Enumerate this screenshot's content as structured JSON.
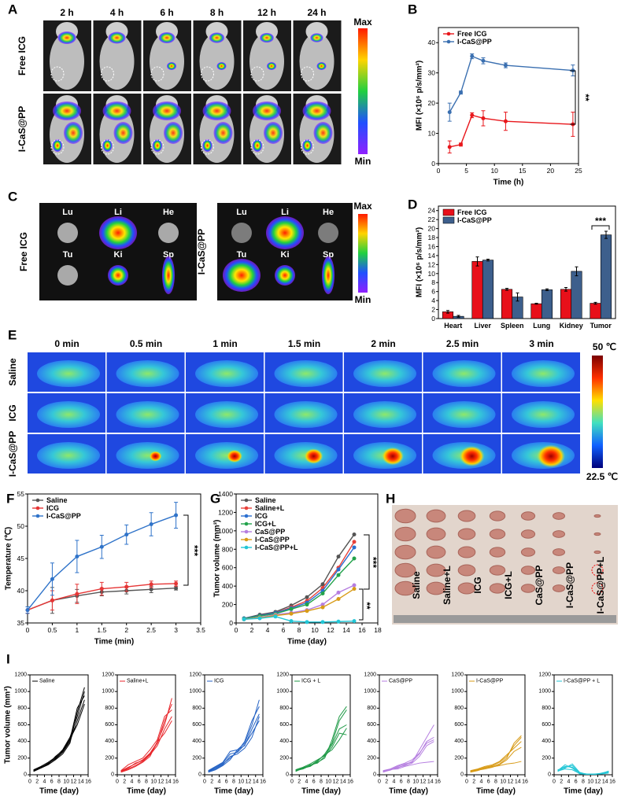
{
  "panel_A": {
    "label": "A",
    "columns": [
      "2 h",
      "4 h",
      "6 h",
      "8 h",
      "12 h",
      "24 h"
    ],
    "rows": [
      "Free ICG",
      "I-CaS@PP"
    ],
    "scale": [
      "Max",
      "Min"
    ]
  },
  "panel_C": {
    "label": "C",
    "groups": [
      {
        "name": "Free ICG",
        "organs": [
          "Lu",
          "Li",
          "He",
          "Tu",
          "Ki",
          "Sp"
        ]
      },
      {
        "name": "I-CaS@PP",
        "organs": [
          "Lu",
          "Li",
          "He",
          "Tu",
          "Ki",
          "Sp"
        ]
      }
    ],
    "scale": [
      "Max",
      "Min"
    ]
  },
  "panel_E": {
    "label": "E",
    "columns": [
      "0 min",
      "0.5 min",
      "1 min",
      "1.5 min",
      "2 min",
      "2.5 min",
      "3 min"
    ],
    "rows": [
      "Saline",
      "ICG",
      "I-CaS@PP"
    ],
    "scale": [
      "50 ℃",
      "22.5 ℃"
    ]
  },
  "panel_H": {
    "label": "H",
    "groups": [
      "Saline",
      "Saline+L",
      "ICG",
      "ICG+L",
      "CaS@PP",
      "I-CaS@PP",
      "I-CaS@PP+L"
    ]
  },
  "chart_data": [
    {
      "type": "line",
      "label": "B",
      "x_label": "Time (h)",
      "y_label": "MFI (×10⁶ p/s/mm²)",
      "x": [
        2,
        4,
        6,
        8,
        12,
        24
      ],
      "xlim": [
        0,
        25
      ],
      "xticks": [
        0,
        5,
        10,
        15,
        20,
        25
      ],
      "ylim": [
        0,
        45
      ],
      "yticks": [
        0,
        10,
        20,
        30,
        40
      ],
      "series": [
        {
          "name": "Free ICG",
          "color": "#e8161b",
          "values": [
            5.5,
            6.3,
            16,
            15,
            14,
            13
          ],
          "errors": [
            2,
            0.5,
            0.8,
            2.5,
            3,
            4
          ]
        },
        {
          "name": "I-CaS@PP",
          "color": "#3a6fb0",
          "values": [
            17,
            23.5,
            35.5,
            34,
            32.5,
            30.8
          ],
          "errors": [
            3,
            0.5,
            0.8,
            1,
            0.8,
            1.8
          ]
        }
      ],
      "annotations": [
        "**"
      ]
    },
    {
      "type": "bar",
      "label": "D",
      "y_label": "MFI (×10⁶ p/s/mm²)",
      "categories": [
        "Heart",
        "Liver",
        "Spleen",
        "Lung",
        "Kidney",
        "Tumor"
      ],
      "ylim": [
        0,
        25
      ],
      "yticks": [
        0,
        2,
        4,
        6,
        8,
        10,
        12,
        14,
        16,
        18,
        20,
        22,
        24
      ],
      "series": [
        {
          "name": "Free ICG",
          "color": "#e8101a",
          "values": [
            1.5,
            12.7,
            6.5,
            3.3,
            6.5,
            3.4
          ],
          "errors": [
            0.3,
            1,
            0.2,
            0.1,
            0.4,
            0.2
          ]
        },
        {
          "name": "I-CaS@PP",
          "color": "#3d5f8c",
          "values": [
            0.5,
            13,
            4.8,
            6.4,
            10.5,
            18.6
          ],
          "errors": [
            0.2,
            0.2,
            0.9,
            0.2,
            1,
            0.8
          ]
        }
      ],
      "annotations": [
        "***"
      ]
    },
    {
      "type": "line",
      "label": "F",
      "x_label": "Time (min)",
      "y_label": "Temperature (℃)",
      "x": [
        0,
        0.5,
        1,
        1.5,
        2,
        2.5,
        3
      ],
      "xlim": [
        0,
        3.5
      ],
      "xticks": [
        0,
        0.5,
        1,
        1.5,
        2,
        2.5,
        3,
        3.5
      ],
      "ylim": [
        35,
        55
      ],
      "yticks": [
        35,
        40,
        45,
        50,
        55
      ],
      "series": [
        {
          "name": "Saline",
          "color": "#555555",
          "values": [
            37,
            38.5,
            39.2,
            39.8,
            40,
            40.2,
            40.4
          ],
          "errors": [
            0.5,
            2,
            1,
            0.6,
            0.5,
            0.5,
            0.3
          ]
        },
        {
          "name": "ICG",
          "color": "#e63535",
          "values": [
            37,
            38.5,
            39.5,
            40.3,
            40.6,
            41,
            41.1
          ],
          "errors": [
            0.5,
            1.5,
            1.5,
            1,
            0.7,
            0.5,
            0.4
          ]
        },
        {
          "name": "I-CaS@PP",
          "color": "#2f73c9",
          "values": [
            37,
            41.8,
            45.3,
            46.8,
            48.7,
            50.3,
            51.7
          ],
          "errors": [
            0.5,
            2.5,
            2.5,
            1.8,
            1.5,
            1.8,
            2
          ]
        }
      ],
      "annotations": [
        "***"
      ]
    },
    {
      "type": "line",
      "label": "G",
      "x_label": "Time (day)",
      "y_label": "Tumor volume (mm³)",
      "x": [
        1,
        3,
        5,
        7,
        9,
        11,
        13,
        15
      ],
      "xlim": [
        0,
        18
      ],
      "xticks": [
        0,
        2,
        4,
        6,
        8,
        10,
        12,
        14,
        16,
        18
      ],
      "ylim": [
        0,
        1400
      ],
      "yticks": [
        0,
        200,
        400,
        600,
        800,
        1000,
        1200,
        1400
      ],
      "series": [
        {
          "name": "Saline",
          "color": "#555555",
          "values": [
            50,
            90,
            120,
            190,
            280,
            420,
            720,
            960
          ]
        },
        {
          "name": "Saline+L",
          "color": "#e8413a",
          "values": [
            45,
            80,
            110,
            170,
            240,
            380,
            600,
            880
          ]
        },
        {
          "name": "ICG",
          "color": "#2b6fd0",
          "values": [
            50,
            80,
            110,
            160,
            220,
            350,
            580,
            820
          ]
        },
        {
          "name": "ICG+L",
          "color": "#22a24b",
          "values": [
            45,
            75,
            100,
            150,
            200,
            320,
            520,
            700
          ]
        },
        {
          "name": "CaS@PP",
          "color": "#b57ee0",
          "values": [
            40,
            60,
            90,
            110,
            140,
            200,
            330,
            410
          ]
        },
        {
          "name": "I-CaS@PP",
          "color": "#d89b17",
          "values": [
            40,
            55,
            80,
            100,
            130,
            170,
            260,
            370
          ]
        },
        {
          "name": "I-CaS@PP+L",
          "color": "#22c6d6",
          "values": [
            40,
            50,
            70,
            20,
            10,
            10,
            15,
            20
          ]
        }
      ],
      "annotations": [
        "**",
        "***"
      ]
    },
    {
      "type": "line",
      "label": "I",
      "legend": "Saline",
      "color": "#000000",
      "x_label": "Time (day)",
      "y_label": "Tumor volume (mm³)",
      "x": [
        1,
        3,
        5,
        7,
        9,
        11,
        13,
        15
      ],
      "xlim": [
        0,
        16
      ],
      "xticks": [
        0,
        2,
        4,
        6,
        8,
        10,
        12,
        14,
        16
      ],
      "ylim": [
        0,
        1200
      ],
      "yticks": [
        0,
        200,
        400,
        600,
        800,
        1000,
        1200
      ],
      "series": [
        {
          "values": [
            40,
            80,
            120,
            180,
            250,
            380,
            750,
            1050
          ]
        },
        {
          "values": [
            50,
            90,
            130,
            200,
            280,
            420,
            800,
            950
          ]
        },
        {
          "values": [
            60,
            100,
            150,
            210,
            300,
            450,
            700,
            1000
          ]
        },
        {
          "values": [
            45,
            85,
            140,
            190,
            270,
            400,
            650,
            900
          ]
        },
        {
          "values": [
            55,
            95,
            125,
            220,
            290,
            430,
            600,
            850
          ]
        }
      ]
    },
    {
      "type": "line",
      "legend": "Saline+L",
      "color": "#e8262b",
      "x_label": "Time (day)",
      "x": [
        1,
        3,
        5,
        7,
        9,
        11,
        13,
        15
      ],
      "xlim": [
        0,
        16
      ],
      "xticks": [
        0,
        2,
        4,
        6,
        8,
        10,
        12,
        14,
        16
      ],
      "ylim": [
        0,
        1200
      ],
      "yticks": [
        0,
        200,
        400,
        600,
        800,
        1000,
        1200
      ],
      "series": [
        {
          "values": [
            30,
            60,
            100,
            150,
            220,
            400,
            600,
            920
          ]
        },
        {
          "values": [
            40,
            80,
            140,
            170,
            250,
            380,
            650,
            850
          ]
        },
        {
          "values": [
            50,
            120,
            160,
            200,
            300,
            420,
            700,
            780
          ]
        },
        {
          "values": [
            35,
            70,
            110,
            160,
            240,
            350,
            550,
            700
          ]
        },
        {
          "values": [
            45,
            90,
            130,
            180,
            260,
            390,
            500,
            650
          ]
        }
      ]
    },
    {
      "type": "line",
      "legend": "ICG",
      "color": "#2462c4",
      "x_label": "Time (day)",
      "x": [
        1,
        3,
        5,
        7,
        9,
        11,
        13,
        15
      ],
      "xlim": [
        0,
        16
      ],
      "xticks": [
        0,
        2,
        4,
        6,
        8,
        10,
        12,
        14,
        16
      ],
      "ylim": [
        0,
        1200
      ],
      "yticks": [
        0,
        200,
        400,
        600,
        800,
        1000,
        1200
      ],
      "series": [
        {
          "values": [
            30,
            60,
            110,
            180,
            300,
            380,
            600,
            900
          ]
        },
        {
          "values": [
            40,
            80,
            130,
            200,
            280,
            400,
            650,
            820
          ]
        },
        {
          "values": [
            50,
            100,
            150,
            280,
            300,
            350,
            550,
            730
          ]
        },
        {
          "values": [
            35,
            70,
            120,
            220,
            250,
            320,
            450,
            700
          ]
        },
        {
          "values": [
            45,
            90,
            140,
            250,
            270,
            360,
            500,
            650
          ]
        }
      ]
    },
    {
      "type": "line",
      "legend": "ICG + L",
      "color": "#1f9a47",
      "x_label": "Time (day)",
      "x": [
        1,
        3,
        5,
        7,
        9,
        11,
        13,
        15
      ],
      "xlim": [
        0,
        16
      ],
      "xticks": [
        0,
        2,
        4,
        6,
        8,
        10,
        12,
        14,
        16
      ],
      "ylim": [
        0,
        1200
      ],
      "yticks": [
        0,
        200,
        400,
        600,
        800,
        1000,
        1200
      ],
      "series": [
        {
          "values": [
            50,
            70,
            110,
            150,
            200,
            420,
            700,
            820
          ]
        },
        {
          "values": [
            40,
            80,
            100,
            160,
            250,
            380,
            650,
            780
          ]
        },
        {
          "values": [
            60,
            90,
            130,
            180,
            230,
            360,
            550,
            600
          ]
        },
        {
          "values": [
            45,
            75,
            120,
            140,
            220,
            330,
            500,
            480
          ]
        },
        {
          "values": [
            55,
            85,
            110,
            170,
            240,
            300,
            420,
            560
          ]
        }
      ]
    },
    {
      "type": "line",
      "legend": "CaS@PP",
      "color": "#b57ee0",
      "x_label": "Time (day)",
      "x": [
        1,
        3,
        5,
        7,
        9,
        11,
        13,
        15
      ],
      "xlim": [
        0,
        16
      ],
      "xticks": [
        0,
        2,
        4,
        6,
        8,
        10,
        12,
        14,
        16
      ],
      "ylim": [
        0,
        1200
      ],
      "yticks": [
        0,
        200,
        400,
        600,
        800,
        1000,
        1200
      ],
      "series": [
        {
          "values": [
            40,
            60,
            100,
            130,
            150,
            300,
            450,
            600
          ]
        },
        {
          "values": [
            30,
            60,
            80,
            120,
            160,
            250,
            400,
            450
          ]
        },
        {
          "values": [
            50,
            70,
            110,
            140,
            180,
            260,
            380,
            420
          ]
        },
        {
          "values": [
            35,
            55,
            90,
            110,
            140,
            220,
            350,
            400
          ]
        },
        {
          "values": [
            45,
            65,
            70,
            100,
            120,
            140,
            150,
            160
          ]
        }
      ]
    },
    {
      "type": "line",
      "legend": "I-CaS@PP",
      "color": "#d89b17",
      "x_label": "Time (day)",
      "x": [
        1,
        3,
        5,
        7,
        9,
        11,
        13,
        15
      ],
      "xlim": [
        0,
        16
      ],
      "xticks": [
        0,
        2,
        4,
        6,
        8,
        10,
        12,
        14,
        16
      ],
      "ylim": [
        0,
        1200
      ],
      "yticks": [
        0,
        200,
        400,
        600,
        800,
        1000,
        1200
      ],
      "series": [
        {
          "values": [
            30,
            50,
            80,
            100,
            130,
            200,
            380,
            470
          ]
        },
        {
          "values": [
            40,
            60,
            90,
            110,
            150,
            220,
            350,
            450
          ]
        },
        {
          "values": [
            50,
            70,
            100,
            120,
            160,
            240,
            320,
            400
          ]
        },
        {
          "values": [
            35,
            55,
            70,
            90,
            120,
            180,
            280,
            330
          ]
        },
        {
          "values": [
            45,
            65,
            85,
            95,
            110,
            130,
            140,
            160
          ]
        }
      ]
    },
    {
      "type": "line",
      "legend": "I-CaS@PP + L",
      "color": "#22c6d6",
      "x_label": "Time (day)",
      "x": [
        1,
        3,
        5,
        7,
        9,
        11,
        13,
        15
      ],
      "xlim": [
        0,
        16
      ],
      "xticks": [
        0,
        2,
        4,
        6,
        8,
        10,
        12,
        14,
        16
      ],
      "ylim": [
        0,
        1200
      ],
      "yticks": [
        0,
        200,
        400,
        600,
        800,
        1000,
        1200
      ],
      "series": [
        {
          "values": [
            50,
            120,
            80,
            10,
            5,
            5,
            20,
            40
          ]
        },
        {
          "values": [
            40,
            90,
            110,
            20,
            10,
            10,
            15,
            30
          ]
        },
        {
          "values": [
            60,
            80,
            130,
            30,
            5,
            5,
            10,
            20
          ]
        },
        {
          "values": [
            45,
            70,
            60,
            15,
            10,
            10,
            10,
            35
          ]
        },
        {
          "values": [
            55,
            100,
            90,
            25,
            5,
            5,
            15,
            45
          ]
        }
      ]
    }
  ]
}
